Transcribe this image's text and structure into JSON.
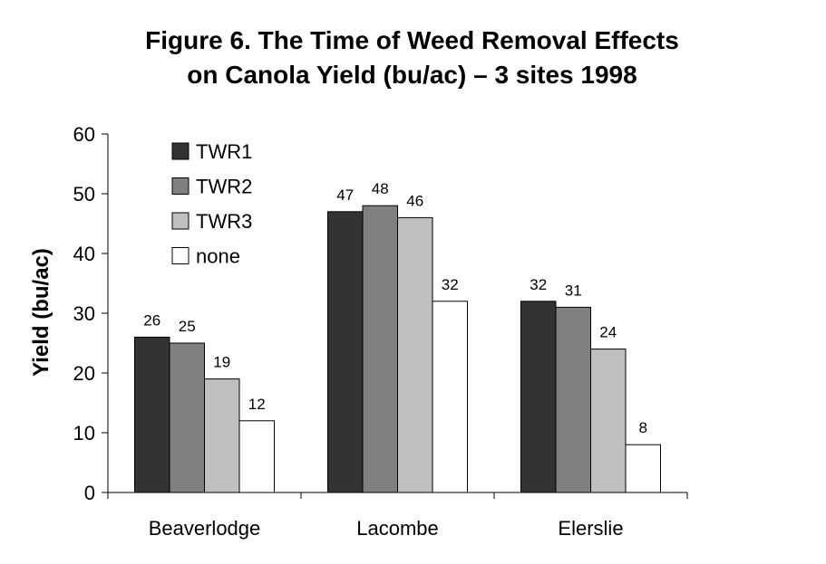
{
  "page": {
    "title_line_1": "Figure 6.  The Time of Weed Removal Effects",
    "title_line_2": "on Canola Yield (bu/ac) – 3 sites 1998"
  },
  "chart_data": {
    "type": "bar",
    "title": "Figure 6.  The Time of Weed Removal Effects on Canola Yield (bu/ac) – 3 sites 1998",
    "xlabel": "",
    "ylabel": "Yield (bu/ac)",
    "categories": [
      "Beaverlodge",
      "Lacombe",
      "Elerslie"
    ],
    "series": [
      {
        "name": "TWR1",
        "color": "#333333",
        "values": [
          26,
          47,
          32
        ]
      },
      {
        "name": "TWR2",
        "color": "#808080",
        "values": [
          25,
          48,
          31
        ]
      },
      {
        "name": "TWR3",
        "color": "#c0c0c0",
        "values": [
          19,
          46,
          24
        ]
      },
      {
        "name": "none",
        "color": "#ffffff",
        "values": [
          12,
          32,
          8
        ]
      }
    ],
    "ylim": [
      0,
      60
    ],
    "yticks": [
      0,
      10,
      20,
      30,
      40,
      50,
      60
    ],
    "data_labels": true,
    "grid": false,
    "legend": "top-left"
  }
}
